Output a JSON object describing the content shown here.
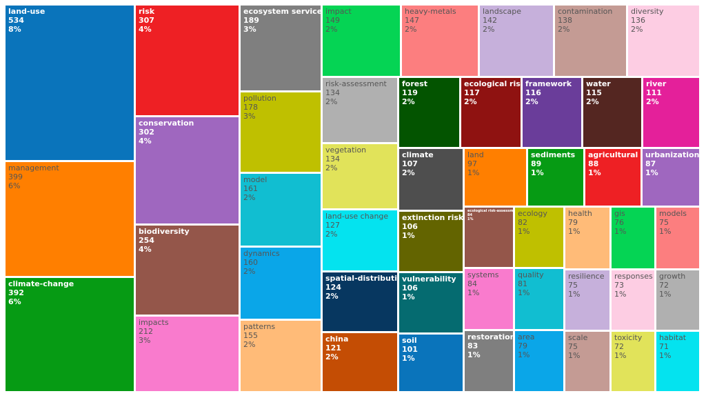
{
  "chart_data": {
    "type": "treemap",
    "items": [
      {
        "label": "land-use",
        "value": 534,
        "percent": "8%",
        "color": "#0a74bb",
        "text": "light"
      },
      {
        "label": "management",
        "value": 399,
        "percent": "6%",
        "color": "#ff7f00",
        "text": "dark"
      },
      {
        "label": "climate-change",
        "value": 392,
        "percent": "6%",
        "color": "#069b14",
        "text": "light"
      },
      {
        "label": "risk",
        "value": 307,
        "percent": "4%",
        "color": "#ee2024",
        "text": "light"
      },
      {
        "label": "conservation",
        "value": 302,
        "percent": "4%",
        "color": "#9f67bf",
        "text": "light"
      },
      {
        "label": "biodiversity",
        "value": 254,
        "percent": "4%",
        "color": "#94564a",
        "text": "light"
      },
      {
        "label": "impacts",
        "value": 212,
        "percent": "3%",
        "color": "#f97bcd",
        "text": "dark"
      },
      {
        "label": "ecosystem services",
        "value": 189,
        "percent": "3%",
        "color": "#7f7f7f",
        "text": "light"
      },
      {
        "label": "pollution",
        "value": 178,
        "percent": "3%",
        "color": "#bfc000",
        "text": "dark"
      },
      {
        "label": "model",
        "value": 161,
        "percent": "2%",
        "color": "#11bed1",
        "text": "dark"
      },
      {
        "label": "dynamics",
        "value": 160,
        "percent": "2%",
        "color": "#0aa6e8",
        "text": "dark"
      },
      {
        "label": "patterns",
        "value": 155,
        "percent": "2%",
        "color": "#ffbb78",
        "text": "dark"
      },
      {
        "label": "impact",
        "value": 149,
        "percent": "2%",
        "color": "#05d454",
        "text": "dark"
      },
      {
        "label": "heavy-metals",
        "value": 147,
        "percent": "2%",
        "color": "#fc7e7f",
        "text": "dark"
      },
      {
        "label": "landscape",
        "value": 142,
        "percent": "2%",
        "color": "#c6b0db",
        "text": "dark"
      },
      {
        "label": "contamination",
        "value": 138,
        "percent": "2%",
        "color": "#c49b94",
        "text": "dark"
      },
      {
        "label": "diversity",
        "value": 136,
        "percent": "2%",
        "color": "#fdcde3",
        "text": "dark"
      },
      {
        "label": "risk-assessment",
        "value": 134,
        "percent": "2%",
        "color": "#b0b0b0",
        "text": "dark"
      },
      {
        "label": "vegetation",
        "value": 134,
        "percent": "2%",
        "color": "#e1e35a",
        "text": "dark"
      },
      {
        "label": "forest",
        "value": 119,
        "percent": "2%",
        "color": "#035400",
        "text": "light"
      },
      {
        "label": "ecological risk",
        "value": 117,
        "percent": "2%",
        "color": "#8f1211",
        "text": "light"
      },
      {
        "label": "framework",
        "value": 116,
        "percent": "2%",
        "color": "#6a3d9a",
        "text": "light"
      },
      {
        "label": "water",
        "value": 115,
        "percent": "2%",
        "color": "#542621",
        "text": "light"
      },
      {
        "label": "river",
        "value": 111,
        "percent": "2%",
        "color": "#e4209a",
        "text": "light"
      },
      {
        "label": "land-use change",
        "value": 127,
        "percent": "2%",
        "color": "#04e3ef",
        "text": "dark"
      },
      {
        "label": "spatial-distribution",
        "value": 124,
        "percent": "2%",
        "color": "#073760",
        "text": "light"
      },
      {
        "label": "china",
        "value": 121,
        "percent": "2%",
        "color": "#c44d04",
        "text": "light"
      },
      {
        "label": "climate",
        "value": 107,
        "percent": "2%",
        "color": "#4e4e4e",
        "text": "light"
      },
      {
        "label": "land",
        "value": 97,
        "percent": "1%",
        "color": "#ff7f00",
        "text": "dark"
      },
      {
        "label": "sediments",
        "value": 89,
        "percent": "1%",
        "color": "#069b14",
        "text": "light"
      },
      {
        "label": "agricultural soils",
        "value": 88,
        "percent": "1%",
        "color": "#ee2024",
        "text": "light"
      },
      {
        "label": "urbanization",
        "value": 87,
        "percent": "1%",
        "color": "#9f67bf",
        "text": "light"
      },
      {
        "label": "extinction risk",
        "value": 106,
        "percent": "1%",
        "color": "#636400",
        "text": "light"
      },
      {
        "label": "vulnerability",
        "value": 106,
        "percent": "1%",
        "color": "#056b70",
        "text": "light"
      },
      {
        "label": "soil",
        "value": 101,
        "percent": "1%",
        "color": "#0a74bb",
        "text": "light"
      },
      {
        "label": "ecological risk-assessment",
        "value": 84,
        "percent": "1%",
        "color": "#94564a",
        "text": "light"
      },
      {
        "label": "systems",
        "value": 84,
        "percent": "1%",
        "color": "#f97bcd",
        "text": "dark"
      },
      {
        "label": "restoration",
        "value": 83,
        "percent": "1%",
        "color": "#7f7f7f",
        "text": "light"
      },
      {
        "label": "ecology",
        "value": 82,
        "percent": "1%",
        "color": "#bfc000",
        "text": "dark"
      },
      {
        "label": "quality",
        "value": 81,
        "percent": "1%",
        "color": "#11bed1",
        "text": "dark"
      },
      {
        "label": "area",
        "value": 79,
        "percent": "1%",
        "color": "#0aa6e8",
        "text": "dark"
      },
      {
        "label": "health",
        "value": 79,
        "percent": "1%",
        "color": "#ffbb78",
        "text": "dark"
      },
      {
        "label": "resilience",
        "value": 75,
        "percent": "1%",
        "color": "#c6b0db",
        "text": "dark"
      },
      {
        "label": "scale",
        "value": 75,
        "percent": "1%",
        "color": "#c49b94",
        "text": "dark"
      },
      {
        "label": "gis",
        "value": 76,
        "percent": "1%",
        "color": "#05d454",
        "text": "dark"
      },
      {
        "label": "responses",
        "value": 73,
        "percent": "1%",
        "color": "#fdcde3",
        "text": "dark"
      },
      {
        "label": "toxicity",
        "value": 72,
        "percent": "1%",
        "color": "#e1e35a",
        "text": "dark"
      },
      {
        "label": "models",
        "value": 75,
        "percent": "1%",
        "color": "#fc7e7f",
        "text": "dark"
      },
      {
        "label": "growth",
        "value": 72,
        "percent": "1%",
        "color": "#b0b0b0",
        "text": "dark"
      },
      {
        "label": "habitat",
        "value": 71,
        "percent": "1%",
        "color": "#04e3ef",
        "text": "dark"
      }
    ]
  }
}
